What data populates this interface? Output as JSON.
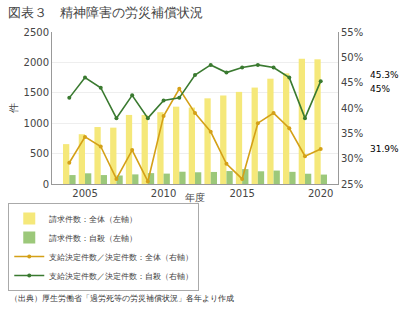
{
  "chart_data": {
    "type": "bar",
    "title": "図表３　精神障害の労災補償状況",
    "footnote": "（出典）厚生労働省「過労死等の労災補償状況」各年より作成",
    "x_label": "年度",
    "y_label": "件",
    "categories": [
      null,
      "2005",
      null,
      null,
      null,
      null,
      "2010",
      null,
      null,
      null,
      null,
      "2015",
      null,
      null,
      null,
      null,
      "2020"
    ],
    "series": [
      {
        "name": "請求件数：全体（左軸）",
        "type": "bar",
        "color": "#f5e87a",
        "values": [
          656,
          819,
          937,
          927,
          1136,
          1136,
          1181,
          1272,
          1257,
          1409,
          1456,
          1515,
          1586,
          1732,
          1820,
          2060,
          2051
        ]
      },
      {
        "name": "請求件数：自殺（左軸）",
        "type": "bar",
        "color": "#9cc87a",
        "values": [
          147,
          176,
          147,
          140,
          158,
          179,
          171,
          202,
          193,
          198,
          213,
          245,
          209,
          221,
          200,
          169,
          155
        ]
      },
      {
        "name": "支給決定件数／決定件数：全体（右軸）",
        "type": "line",
        "axis": "y2",
        "color": "#d4a017",
        "marker": "circle",
        "line_style": "solid",
        "values": [
          29.2,
          34.3,
          32.4,
          26.0,
          31.7,
          25.5,
          38.4,
          43.8,
          39.0,
          35.3,
          29.0,
          26.0,
          37.0,
          39.0,
          36.0,
          30.5,
          31.9
        ]
      },
      {
        "name": "支給決定件数／決定件数：自殺（右軸）",
        "type": "line",
        "axis": "y2",
        "color": "#3a7a30",
        "marker": "circle",
        "line_style": "solid",
        "values": [
          42.0,
          46.0,
          44.0,
          38.0,
          42.5,
          38.0,
          41.5,
          42.0,
          46.5,
          48.5,
          47.0,
          48.0,
          48.5,
          48.0,
          46.0,
          38.0,
          45.3
        ]
      }
    ],
    "ylim": [
      0,
      2500
    ],
    "yticks": [
      0,
      500,
      1000,
      1500,
      2000,
      2500
    ],
    "y2lim": [
      25,
      55
    ],
    "y2ticks": [
      {
        "value": 25,
        "label": "25%"
      },
      {
        "value": 30,
        "label": "30%"
      },
      {
        "value": 35,
        "label": "35%"
      },
      {
        "value": 40,
        "label": "40%"
      },
      {
        "value": 45,
        "label": "45%"
      },
      {
        "value": 50,
        "label": "50%"
      },
      {
        "value": 55,
        "label": "55%"
      }
    ],
    "annotations": [
      {
        "text": "45.3%",
        "y": 45.3,
        "axis": "y2"
      },
      {
        "text": "45%",
        "y": 45,
        "axis": "y2"
      },
      {
        "text": "31.9%",
        "y": 31.9,
        "axis": "y2"
      }
    ],
    "grid": true,
    "legend": "lower left"
  }
}
